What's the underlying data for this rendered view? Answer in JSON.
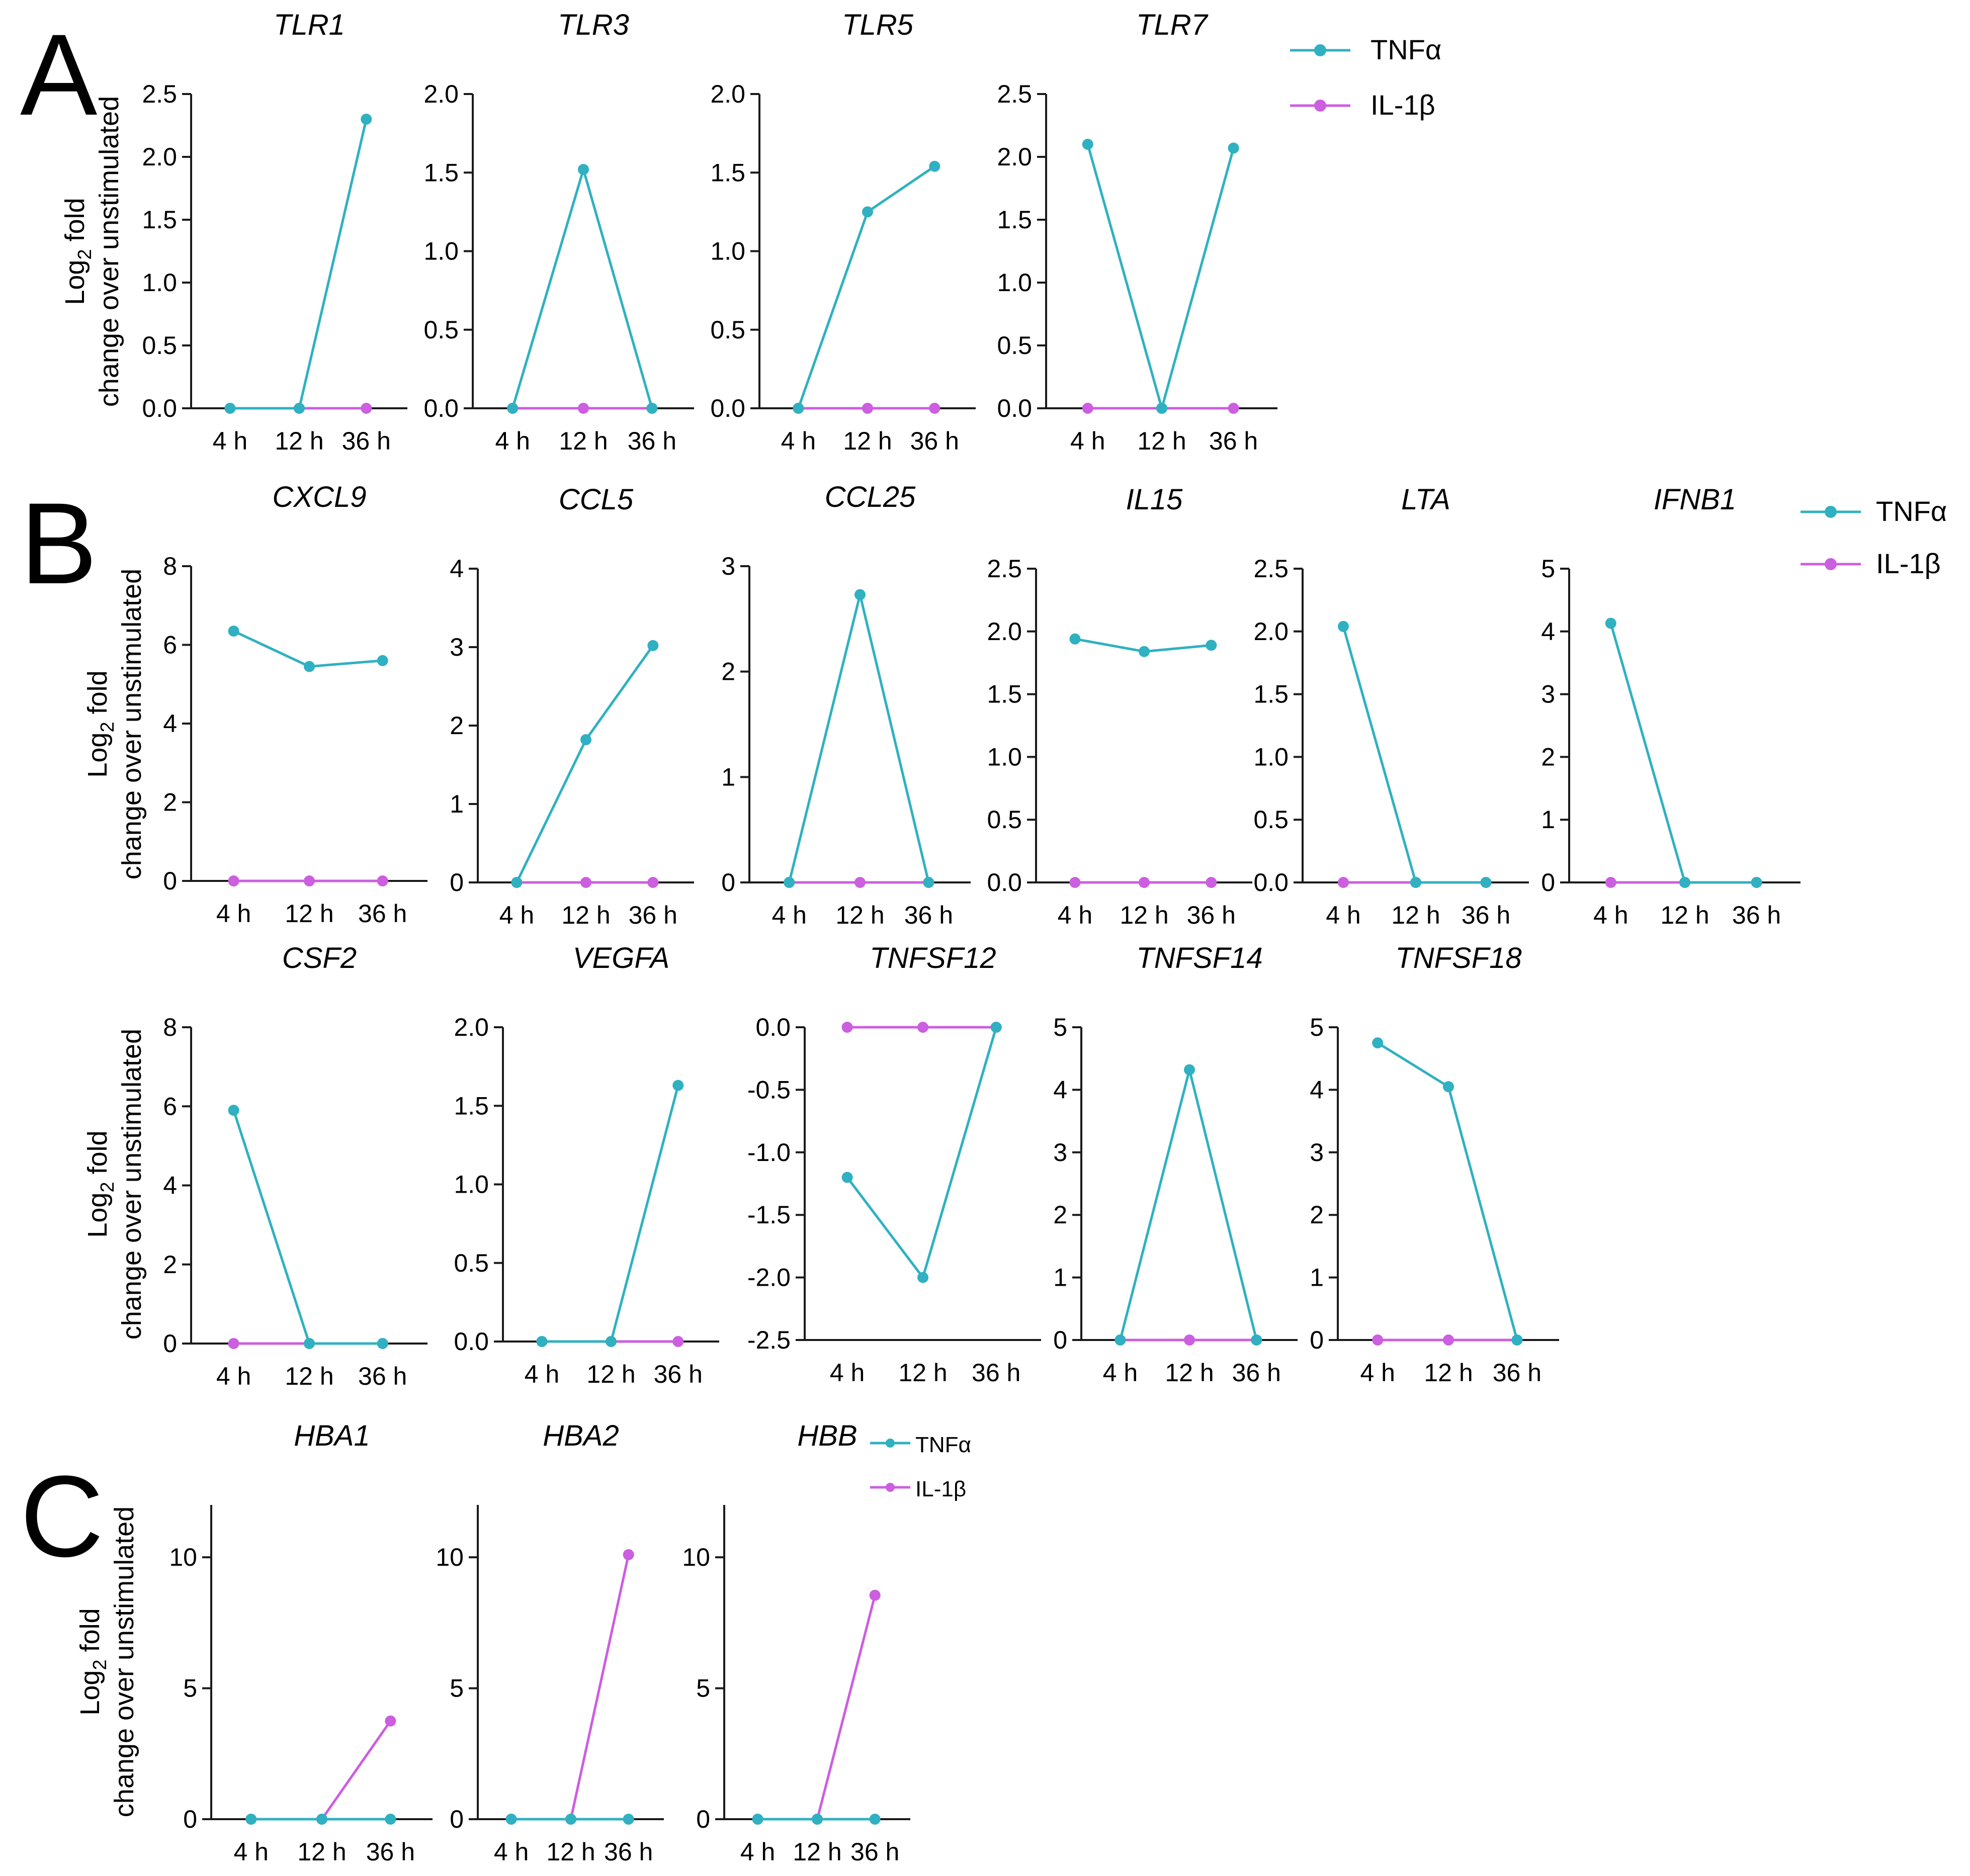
{
  "colors": {
    "tnf": "#2fb1c1",
    "il1b": "#cc5ee0",
    "axis": "#1a1a1a"
  },
  "legend": {
    "tnf": "TNFα",
    "il1b": "IL-1β"
  },
  "ylabel": {
    "line1_prefix": "Log",
    "line1_subscript": "2",
    "line1_suffix": " fold",
    "line2": "change over unstimulated"
  },
  "panels": [
    {
      "letter": "A"
    },
    {
      "letter": "B"
    },
    {
      "letter": "C"
    }
  ],
  "chart_data": [
    {
      "type": "line",
      "title": "TLR1",
      "categories": [
        "4 h",
        "12 h",
        "36 h"
      ],
      "ylim": [
        0,
        2.5
      ],
      "yticks": [
        "0.0",
        "0.5",
        "1.0",
        "1.5",
        "2.0",
        "2.5"
      ],
      "series": [
        {
          "name": "TNFα",
          "values": [
            0,
            0,
            2.3
          ]
        },
        {
          "name": "IL-1β",
          "values": [
            0,
            0,
            0
          ]
        }
      ]
    },
    {
      "type": "line",
      "title": "TLR3",
      "categories": [
        "4 h",
        "12 h",
        "36 h"
      ],
      "ylim": [
        0,
        2.0
      ],
      "yticks": [
        "0.0",
        "0.5",
        "1.0",
        "1.5",
        "2.0"
      ],
      "series": [
        {
          "name": "TNFα",
          "values": [
            0,
            1.52,
            0
          ]
        },
        {
          "name": "IL-1β",
          "values": [
            0,
            0,
            0
          ]
        }
      ]
    },
    {
      "type": "line",
      "title": "TLR5",
      "categories": [
        "4 h",
        "12 h",
        "36 h"
      ],
      "ylim": [
        0,
        2.0
      ],
      "yticks": [
        "0.0",
        "0.5",
        "1.0",
        "1.5",
        "2.0"
      ],
      "series": [
        {
          "name": "TNFα",
          "values": [
            0,
            1.25,
            1.54
          ]
        },
        {
          "name": "IL-1β",
          "values": [
            0,
            0,
            0
          ]
        }
      ]
    },
    {
      "type": "line",
      "title": "TLR7",
      "categories": [
        "4 h",
        "12 h",
        "36 h"
      ],
      "ylim": [
        0,
        2.5
      ],
      "yticks": [
        "0.0",
        "0.5",
        "1.0",
        "1.5",
        "2.0",
        "2.5"
      ],
      "series": [
        {
          "name": "TNFα",
          "values": [
            2.1,
            0,
            2.07
          ]
        },
        {
          "name": "IL-1β",
          "values": [
            0,
            0,
            0
          ]
        }
      ]
    },
    {
      "type": "line",
      "title": "CXCL9",
      "categories": [
        "4 h",
        "12 h",
        "36 h"
      ],
      "ylim": [
        0,
        8
      ],
      "yticks": [
        "0",
        "2",
        "4",
        "6",
        "8"
      ],
      "series": [
        {
          "name": "TNFα",
          "values": [
            6.35,
            5.45,
            5.6
          ]
        },
        {
          "name": "IL-1β",
          "values": [
            0,
            0,
            0
          ]
        }
      ]
    },
    {
      "type": "line",
      "title": "CCL5",
      "categories": [
        "4 h",
        "12 h",
        "36 h"
      ],
      "ylim": [
        0,
        4
      ],
      "yticks": [
        "0",
        "1",
        "2",
        "3",
        "4"
      ],
      "series": [
        {
          "name": "TNFα",
          "values": [
            0,
            1.82,
            3.02
          ]
        },
        {
          "name": "IL-1β",
          "values": [
            0,
            0,
            0
          ]
        }
      ]
    },
    {
      "type": "line",
      "title": "CCL25",
      "categories": [
        "4 h",
        "12 h",
        "36 h"
      ],
      "ylim": [
        0,
        3
      ],
      "yticks": [
        "0",
        "1",
        "2",
        "3"
      ],
      "series": [
        {
          "name": "TNFα",
          "values": [
            0,
            2.73,
            0
          ]
        },
        {
          "name": "IL-1β",
          "values": [
            0,
            0,
            0
          ]
        }
      ]
    },
    {
      "type": "line",
      "title": "IL15",
      "categories": [
        "4 h",
        "12 h",
        "36 h"
      ],
      "ylim": [
        0,
        2.5
      ],
      "yticks": [
        "0.0",
        "0.5",
        "1.0",
        "1.5",
        "2.0",
        "2.5"
      ],
      "series": [
        {
          "name": "TNFα",
          "values": [
            1.94,
            1.84,
            1.89
          ]
        },
        {
          "name": "IL-1β",
          "values": [
            0,
            0,
            0
          ]
        }
      ]
    },
    {
      "type": "line",
      "title": "LTA",
      "categories": [
        "4 h",
        "12 h",
        "36 h"
      ],
      "ylim": [
        0,
        2.5
      ],
      "yticks": [
        "0.0",
        "0.5",
        "1.0",
        "1.5",
        "2.0",
        "2.5"
      ],
      "series": [
        {
          "name": "TNFα",
          "values": [
            2.04,
            0,
            0
          ]
        },
        {
          "name": "IL-1β",
          "values": [
            0,
            0,
            0
          ]
        }
      ]
    },
    {
      "type": "line",
      "title": "IFNB1",
      "categories": [
        "4 h",
        "12 h",
        "36 h"
      ],
      "ylim": [
        0,
        5
      ],
      "yticks": [
        "0",
        "1",
        "2",
        "3",
        "4",
        "5"
      ],
      "series": [
        {
          "name": "TNFα",
          "values": [
            4.13,
            0,
            0
          ]
        },
        {
          "name": "IL-1β",
          "values": [
            0,
            0,
            0
          ]
        }
      ]
    },
    {
      "type": "line",
      "title": "CSF2",
      "categories": [
        "4 h",
        "12 h",
        "36 h"
      ],
      "ylim": [
        0,
        8
      ],
      "yticks": [
        "0",
        "2",
        "4",
        "6",
        "8"
      ],
      "series": [
        {
          "name": "TNFα",
          "values": [
            5.9,
            0,
            0
          ]
        },
        {
          "name": "IL-1β",
          "values": [
            0,
            0,
            0
          ]
        }
      ]
    },
    {
      "type": "line",
      "title": "VEGFA",
      "categories": [
        "4 h",
        "12 h",
        "36 h"
      ],
      "ylim": [
        0,
        2.0
      ],
      "yticks": [
        "0.0",
        "0.5",
        "1.0",
        "1.5",
        "2.0"
      ],
      "series": [
        {
          "name": "TNFα",
          "values": [
            0,
            0,
            1.63
          ]
        },
        {
          "name": "IL-1β",
          "values": [
            0,
            0,
            0
          ]
        }
      ]
    },
    {
      "type": "line",
      "title": "TNFSF12",
      "categories": [
        "4 h",
        "12 h",
        "36 h"
      ],
      "ylim": [
        -2.5,
        0
      ],
      "yticks": [
        "-2.5",
        "-2.0",
        "-1.5",
        "-1.0",
        "-0.5",
        "0.0"
      ],
      "series": [
        {
          "name": "TNFα",
          "values": [
            -1.2,
            -2.0,
            0
          ]
        },
        {
          "name": "IL-1β",
          "values": [
            0,
            0,
            0
          ]
        }
      ]
    },
    {
      "type": "line",
      "title": "TNFSF14",
      "categories": [
        "4 h",
        "12 h",
        "36 h"
      ],
      "ylim": [
        0,
        5
      ],
      "yticks": [
        "0",
        "1",
        "2",
        "3",
        "4",
        "5"
      ],
      "series": [
        {
          "name": "TNFα",
          "values": [
            0,
            4.32,
            0
          ]
        },
        {
          "name": "IL-1β",
          "values": [
            0,
            0,
            0
          ]
        }
      ]
    },
    {
      "type": "line",
      "title": "TNFSF18",
      "categories": [
        "4 h",
        "12 h",
        "36 h"
      ],
      "ylim": [
        0,
        5
      ],
      "yticks": [
        "0",
        "1",
        "2",
        "3",
        "4",
        "5"
      ],
      "series": [
        {
          "name": "TNFα",
          "values": [
            4.75,
            4.05,
            0
          ]
        },
        {
          "name": "IL-1β",
          "values": [
            0,
            0,
            0
          ]
        }
      ]
    },
    {
      "type": "line",
      "title": "HBA1",
      "categories": [
        "4 h",
        "12 h",
        "36 h"
      ],
      "ylim": [
        0,
        12
      ],
      "yticks": [
        "0",
        "5",
        "10"
      ],
      "series": [
        {
          "name": "TNFα",
          "values": [
            0,
            0,
            0
          ]
        },
        {
          "name": "IL-1β",
          "values": [
            0,
            0,
            3.75
          ]
        }
      ]
    },
    {
      "type": "line",
      "title": "HBA2",
      "categories": [
        "4 h",
        "12 h",
        "36 h"
      ],
      "ylim": [
        0,
        12
      ],
      "yticks": [
        "0",
        "5",
        "10"
      ],
      "series": [
        {
          "name": "TNFα",
          "values": [
            0,
            0,
            0
          ]
        },
        {
          "name": "IL-1β",
          "values": [
            0,
            0,
            10.1
          ]
        }
      ]
    },
    {
      "type": "line",
      "title": "HBB",
      "categories": [
        "4 h",
        "12 h",
        "36 h"
      ],
      "ylim": [
        0,
        12
      ],
      "yticks": [
        "0",
        "5",
        "10"
      ],
      "series": [
        {
          "name": "TNFα",
          "values": [
            0,
            0,
            0
          ]
        },
        {
          "name": "IL-1β",
          "values": [
            0,
            0,
            8.55
          ]
        }
      ]
    }
  ]
}
